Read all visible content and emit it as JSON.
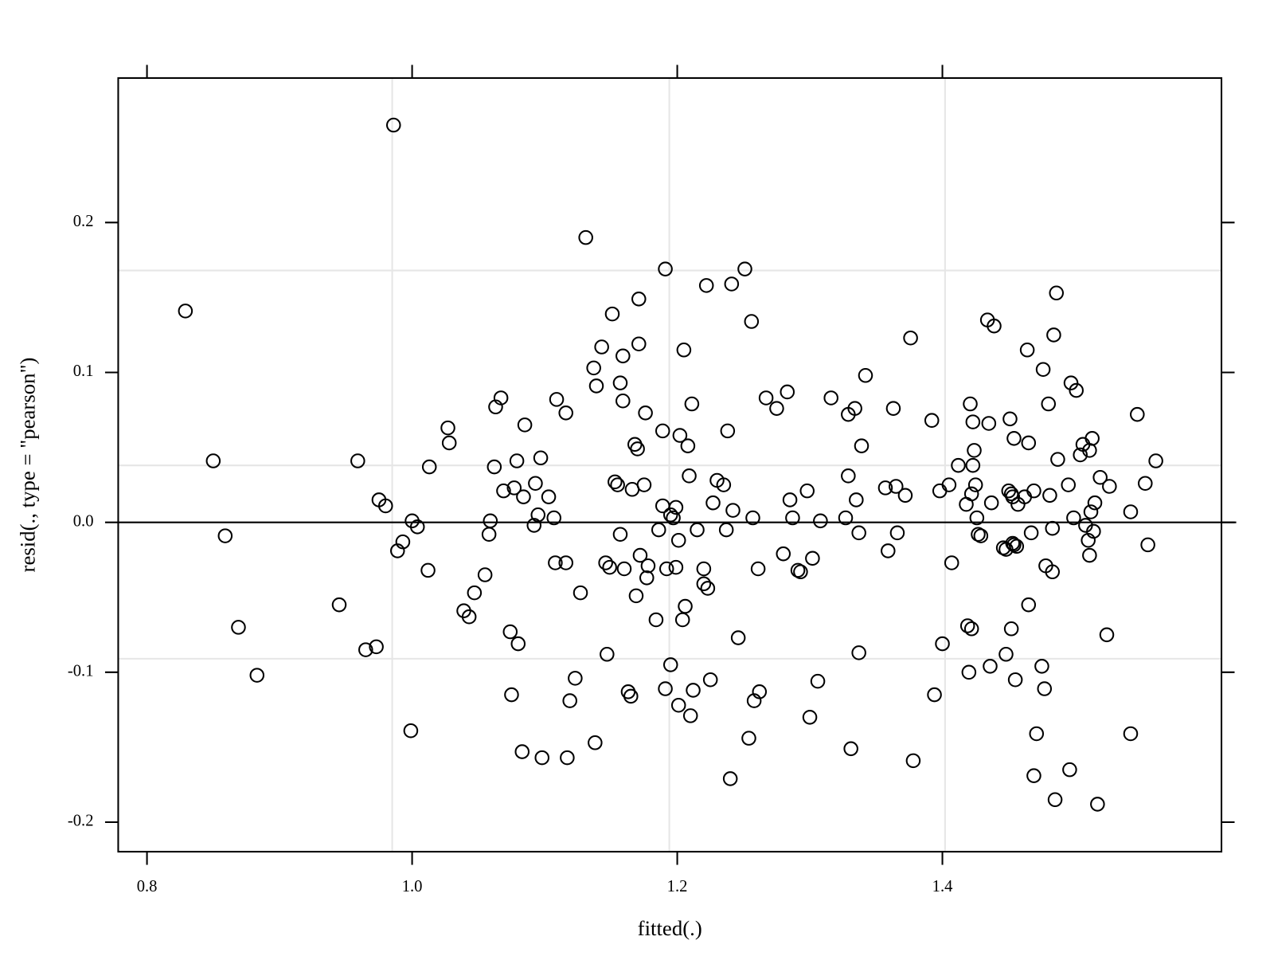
{
  "chart_data": {
    "type": "scatter",
    "xlabel": "fitted(.)",
    "ylabel": "resid(., type = \"pearson\")",
    "xlim": [
      0.7783,
      1.6105
    ],
    "ylim": [
      -0.2197,
      0.2964
    ],
    "xticks": [
      0.8,
      {
        "value": 1,
        "label": "1.0"
      },
      1.2,
      1.4
    ],
    "yticks": [
      -0.2,
      -0.1,
      {
        "value": 0,
        "label": "0.0"
      },
      0.1,
      0.2
    ],
    "reference_line_y": 0,
    "grid_lines_x": [
      0.985,
      1.194,
      1.402
    ],
    "grid_lines_y": [
      -0.091,
      0.038,
      0.168
    ],
    "color": "#000000",
    "x": [
      0.829,
      0.85,
      0.859,
      0.869,
      0.883,
      0.945,
      0.959,
      0.965,
      0.973,
      0.975,
      0.98,
      0.986,
      0.989,
      0.993,
      0.999,
      1.0,
      1.004,
      1.012,
      1.013,
      1.027,
      1.028,
      1.039,
      1.043,
      1.047,
      1.055,
      1.058,
      1.059,
      1.062,
      1.063,
      1.067,
      1.069,
      1.074,
      1.075,
      1.077,
      1.079,
      1.08,
      1.083,
      1.084,
      1.085,
      1.092,
      1.093,
      1.095,
      1.097,
      1.098,
      1.103,
      1.107,
      1.108,
      1.109,
      1.116,
      1.116,
      1.117,
      1.119,
      1.123,
      1.127,
      1.131,
      1.137,
      1.138,
      1.139,
      1.143,
      1.146,
      1.147,
      1.149,
      1.151,
      1.153,
      1.155,
      1.157,
      1.157,
      1.159,
      1.159,
      1.16,
      1.163,
      1.166,
      1.165,
      1.168,
      1.169,
      1.17,
      1.171,
      1.171,
      1.172,
      1.175,
      1.176,
      1.178,
      1.177,
      1.184,
      1.186,
      1.189,
      1.189,
      1.191,
      1.191,
      1.192,
      1.195,
      1.195,
      1.197,
      1.199,
      1.199,
      1.201,
      1.201,
      1.202,
      1.204,
      1.205,
      1.206,
      1.208,
      1.209,
      1.21,
      1.211,
      1.212,
      1.215,
      1.22,
      1.22,
      1.222,
      1.223,
      1.225,
      1.227,
      1.23,
      1.235,
      1.237,
      1.238,
      1.24,
      1.241,
      1.242,
      1.246,
      1.251,
      1.256,
      1.257,
      1.258,
      1.261,
      1.262,
      1.254,
      1.267,
      1.275,
      1.28,
      1.283,
      1.285,
      1.287,
      1.291,
      1.293,
      1.298,
      1.3,
      1.302,
      1.306,
      1.308,
      1.316,
      1.327,
      1.329,
      1.329,
      1.331,
      1.334,
      1.335,
      1.337,
      1.337,
      1.339,
      1.342,
      1.357,
      1.359,
      1.363,
      1.365,
      1.366,
      1.372,
      1.376,
      1.378,
      1.392,
      1.394,
      1.398,
      1.4,
      1.405,
      1.407,
      1.412,
      1.418,
      1.419,
      1.42,
      1.421,
      1.422,
      1.422,
      1.423,
      1.423,
      1.424,
      1.425,
      1.426,
      1.427,
      1.429,
      1.434,
      1.435,
      1.436,
      1.437,
      1.439,
      1.446,
      1.448,
      1.448,
      1.45,
      1.451,
      1.452,
      1.452,
      1.453,
      1.453,
      1.454,
      1.454,
      1.455,
      1.456,
      1.457,
      1.462,
      1.464,
      1.465,
      1.465,
      1.467,
      1.469,
      1.469,
      1.471,
      1.475,
      1.476,
      1.477,
      1.478,
      1.48,
      1.481,
      1.483,
      1.483,
      1.484,
      1.485,
      1.486,
      1.487,
      1.495,
      1.496,
      1.497,
      1.499,
      1.501,
      1.504,
      1.506,
      1.508,
      1.51,
      1.511,
      1.512,
      1.513,
      1.515,
      1.517,
      1.519,
      1.526,
      1.542,
      1.547,
      1.553,
      1.555,
      1.561,
      1.511,
      1.524,
      1.542,
      1.514
    ],
    "y": [
      0.141,
      0.041,
      -0.009,
      -0.07,
      -0.102,
      -0.055,
      0.041,
      -0.085,
      -0.083,
      0.015,
      0.011,
      0.265,
      -0.019,
      -0.013,
      -0.139,
      0.001,
      -0.003,
      -0.032,
      0.037,
      0.063,
      0.053,
      -0.059,
      -0.063,
      -0.047,
      -0.035,
      -0.008,
      0.001,
      0.037,
      0.077,
      0.083,
      0.021,
      -0.073,
      -0.115,
      0.023,
      0.041,
      -0.081,
      -0.153,
      0.017,
      0.065,
      -0.002,
      0.026,
      0.005,
      0.043,
      -0.157,
      0.017,
      0.003,
      -0.027,
      0.082,
      0.073,
      -0.027,
      -0.157,
      -0.119,
      -0.104,
      -0.047,
      0.19,
      0.103,
      -0.147,
      0.091,
      0.117,
      -0.027,
      -0.088,
      -0.03,
      0.139,
      0.027,
      0.025,
      0.093,
      -0.008,
      0.111,
      0.081,
      -0.031,
      -0.113,
      0.022,
      -0.116,
      0.052,
      -0.049,
      0.049,
      0.149,
      0.119,
      -0.022,
      0.025,
      0.073,
      -0.029,
      -0.037,
      -0.065,
      -0.005,
      0.061,
      0.011,
      0.169,
      -0.111,
      -0.031,
      -0.095,
      0.005,
      0.003,
      0.01,
      -0.03,
      -0.122,
      -0.012,
      0.058,
      -0.065,
      0.115,
      -0.056,
      0.051,
      0.031,
      -0.129,
      0.079,
      -0.112,
      -0.005,
      -0.031,
      -0.041,
      0.158,
      -0.044,
      -0.105,
      0.013,
      0.028,
      0.025,
      -0.005,
      0.061,
      -0.171,
      0.159,
      0.008,
      -0.077,
      0.169,
      0.134,
      0.003,
      -0.119,
      -0.031,
      -0.113,
      -0.144,
      0.083,
      0.076,
      -0.021,
      0.087,
      0.015,
      0.003,
      -0.032,
      -0.033,
      0.021,
      -0.13,
      -0.024,
      -0.106,
      0.001,
      0.083,
      0.003,
      0.031,
      0.072,
      -0.151,
      0.076,
      0.015,
      -0.007,
      -0.087,
      0.051,
      0.098,
      0.023,
      -0.019,
      0.076,
      0.024,
      -0.007,
      0.018,
      0.123,
      -0.159,
      0.068,
      -0.115,
      0.021,
      -0.081,
      0.025,
      -0.027,
      0.038,
      0.012,
      -0.069,
      -0.1,
      0.079,
      -0.071,
      0.019,
      0.067,
      0.038,
      0.048,
      0.025,
      0.003,
      -0.008,
      -0.009,
      0.135,
      0.066,
      -0.096,
      0.013,
      0.131,
      -0.017,
      -0.018,
      -0.088,
      0.021,
      0.069,
      -0.071,
      0.019,
      0.017,
      -0.014,
      0.056,
      -0.015,
      -0.105,
      -0.016,
      0.012,
      0.017,
      0.115,
      -0.055,
      0.053,
      -0.007,
      -0.169,
      0.021,
      -0.141,
      -0.096,
      0.102,
      -0.111,
      -0.029,
      0.079,
      0.018,
      -0.033,
      -0.004,
      0.125,
      -0.185,
      0.153,
      0.042,
      0.025,
      -0.165,
      0.093,
      0.003,
      0.088,
      0.045,
      0.052,
      -0.002,
      -0.012,
      -0.022,
      0.007,
      0.056,
      0.013,
      -0.188,
      0.03,
      0.024,
      0.007,
      0.072,
      0.026,
      -0.015,
      0.041,
      0.048,
      -0.075,
      -0.141,
      -0.006
    ]
  }
}
